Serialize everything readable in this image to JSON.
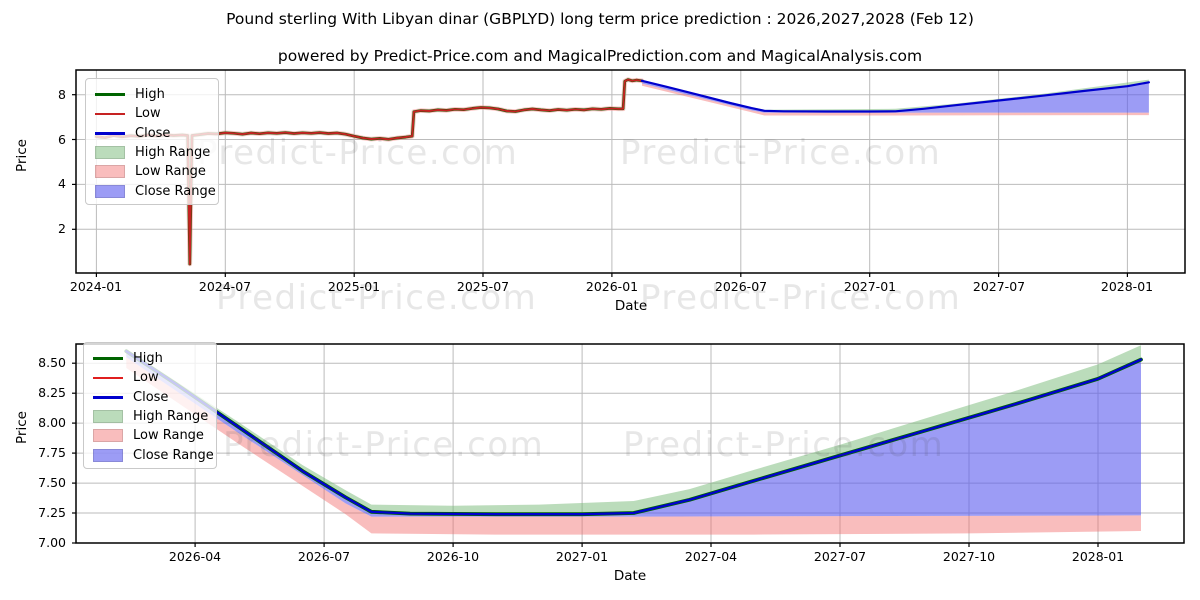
{
  "header": {
    "title": "Pound sterling With Libyan dinar (GBPLYD) long term price prediction : 2026,2027,2028 (Feb 12)",
    "subtitle": "powered by Predict-Price.com and MagicalPrediction.com and MagicalAnalysis.com"
  },
  "watermark": {
    "text": "Predict-Price.com"
  },
  "colors": {
    "high_line": "#006400",
    "low_line_top": "#c62222",
    "low_line_bottom": "#e01f1f",
    "close_line": "#0000cd",
    "high_range_fill": "rgba(120,185,120,0.5)",
    "low_range_fill": "rgba(242,108,108,0.45)",
    "close_range_fill": "rgba(90,90,238,0.6)",
    "grid": "#bbbbbb",
    "spine": "#000000"
  },
  "chart_data": [
    {
      "type": "line",
      "title": "",
      "xlabel": "Date",
      "ylabel": "Price",
      "x_unit": "months since 2024-01",
      "xlim": [
        -0.95,
        50.68
      ],
      "ylim": [
        0.05,
        9.1
      ],
      "grid": true,
      "legend_position": "upper left",
      "xticks": [
        {
          "v": 0,
          "label": "2024-01"
        },
        {
          "v": 6,
          "label": "2024-07"
        },
        {
          "v": 12,
          "label": "2025-01"
        },
        {
          "v": 18,
          "label": "2025-07"
        },
        {
          "v": 24,
          "label": "2026-01"
        },
        {
          "v": 30,
          "label": "2026-07"
        },
        {
          "v": 36,
          "label": "2027-01"
        },
        {
          "v": 42,
          "label": "2027-07"
        },
        {
          "v": 48,
          "label": "2028-01"
        }
      ],
      "yticks": [
        {
          "v": 2,
          "label": "2"
        },
        {
          "v": 4,
          "label": "4"
        },
        {
          "v": 6,
          "label": "6"
        },
        {
          "v": 8,
          "label": "8"
        }
      ],
      "legend": [
        {
          "label": "High",
          "swatch": "line",
          "color": "#006400"
        },
        {
          "label": "Low",
          "swatch": "line",
          "color": "#c62222"
        },
        {
          "label": "Close",
          "swatch": "line",
          "color": "#0000cd"
        },
        {
          "label": "High Range",
          "swatch": "patch",
          "color": "rgba(120,185,120,0.5)"
        },
        {
          "label": "Low Range",
          "swatch": "patch",
          "color": "rgba(242,108,108,0.45)"
        },
        {
          "label": "Close Range",
          "swatch": "patch",
          "color": "rgba(90,90,238,0.6)"
        }
      ],
      "series": {
        "historical_low": [
          [
            0,
            6.13
          ],
          [
            0.4,
            6.08
          ],
          [
            0.8,
            6.18
          ],
          [
            1.2,
            6.12
          ],
          [
            1.6,
            6.17
          ],
          [
            2,
            6.14
          ],
          [
            2.4,
            6.2
          ],
          [
            2.8,
            6.16
          ],
          [
            3.2,
            6.21
          ],
          [
            3.6,
            6.18
          ],
          [
            4,
            6.2
          ],
          [
            4.25,
            6.18
          ],
          [
            4.35,
            0.45
          ],
          [
            4.45,
            6.18
          ],
          [
            4.8,
            6.22
          ],
          [
            5.2,
            6.27
          ],
          [
            5.6,
            6.25
          ],
          [
            6,
            6.3
          ],
          [
            6.4,
            6.28
          ],
          [
            6.8,
            6.24
          ],
          [
            7.2,
            6.29
          ],
          [
            7.6,
            6.26
          ],
          [
            8,
            6.3
          ],
          [
            8.4,
            6.28
          ],
          [
            8.8,
            6.31
          ],
          [
            9.2,
            6.27
          ],
          [
            9.6,
            6.3
          ],
          [
            10,
            6.28
          ],
          [
            10.4,
            6.31
          ],
          [
            10.8,
            6.27
          ],
          [
            11.2,
            6.29
          ],
          [
            11.6,
            6.24
          ],
          [
            12,
            6.15
          ],
          [
            12.4,
            6.07
          ],
          [
            12.8,
            6.02
          ],
          [
            13.2,
            6.05
          ],
          [
            13.6,
            6.01
          ],
          [
            14,
            6.07
          ],
          [
            14.4,
            6.11
          ],
          [
            14.7,
            6.15
          ],
          [
            14.78,
            7.24
          ],
          [
            15.1,
            7.29
          ],
          [
            15.5,
            7.27
          ],
          [
            15.9,
            7.32
          ],
          [
            16.3,
            7.3
          ],
          [
            16.7,
            7.35
          ],
          [
            17.1,
            7.33
          ],
          [
            17.5,
            7.39
          ],
          [
            17.9,
            7.43
          ],
          [
            18.3,
            7.41
          ],
          [
            18.7,
            7.36
          ],
          [
            19.1,
            7.27
          ],
          [
            19.5,
            7.25
          ],
          [
            19.9,
            7.32
          ],
          [
            20.3,
            7.36
          ],
          [
            20.7,
            7.32
          ],
          [
            21.1,
            7.29
          ],
          [
            21.5,
            7.34
          ],
          [
            21.9,
            7.31
          ],
          [
            22.3,
            7.35
          ],
          [
            22.7,
            7.32
          ],
          [
            23.1,
            7.37
          ],
          [
            23.5,
            7.35
          ],
          [
            23.9,
            7.39
          ],
          [
            24.3,
            7.37
          ],
          [
            24.52,
            7.37
          ],
          [
            24.6,
            8.6
          ],
          [
            24.75,
            8.67
          ],
          [
            24.95,
            8.62
          ],
          [
            25.15,
            8.65
          ],
          [
            25.4,
            8.62
          ]
        ],
        "close_prediction": [
          [
            25.4,
            8.62
          ],
          [
            26.5,
            8.36
          ],
          [
            28,
            8.0
          ],
          [
            29.5,
            7.63
          ],
          [
            30.5,
            7.4
          ],
          [
            31.1,
            7.28
          ],
          [
            32,
            7.26
          ],
          [
            34,
            7.25
          ],
          [
            36,
            7.25
          ],
          [
            37.2,
            7.26
          ],
          [
            38.5,
            7.37
          ],
          [
            40,
            7.53
          ],
          [
            42,
            7.74
          ],
          [
            44,
            7.95
          ],
          [
            46,
            8.17
          ],
          [
            48,
            8.38
          ],
          [
            49,
            8.55
          ]
        ],
        "high_range_upper": [
          [
            25.4,
            8.65
          ],
          [
            30.5,
            7.44
          ],
          [
            31.1,
            7.33
          ],
          [
            37.2,
            7.37
          ],
          [
            40,
            7.6
          ],
          [
            44,
            8.03
          ],
          [
            49,
            8.67
          ]
        ],
        "close_range_lower": [
          [
            25.4,
            8.5
          ],
          [
            30.5,
            7.3
          ],
          [
            31.1,
            7.2
          ],
          [
            37.2,
            7.2
          ],
          [
            49,
            7.2
          ]
        ],
        "low_range_lower": [
          [
            25.4,
            8.4
          ],
          [
            30.5,
            7.22
          ],
          [
            31.1,
            7.07
          ],
          [
            37.2,
            7.07
          ],
          [
            49,
            7.09
          ]
        ]
      },
      "render": [
        {
          "kind": "band",
          "upper": "high_range_upper",
          "lower": "close_prediction",
          "color": "rgba(120,185,120,0.5)"
        },
        {
          "kind": "band",
          "upper": "close_range_lower",
          "lower": "low_range_lower",
          "color": "rgba(242,108,108,0.45)"
        },
        {
          "kind": "band",
          "upper": "close_prediction",
          "lower": "close_range_lower",
          "color": "rgba(90,90,238,0.6)"
        },
        {
          "kind": "line",
          "series": "historical_low",
          "color": "rgba(250,140,140,0.5)",
          "width": 4.6
        },
        {
          "kind": "line",
          "series": "historical_low",
          "color": "#006400",
          "width": 2.7
        },
        {
          "kind": "line",
          "series": "historical_low",
          "color": "#c62222",
          "width": 1.9
        },
        {
          "kind": "line",
          "series": "close_prediction",
          "color": "#0000cd",
          "width": 2.2
        }
      ]
    },
    {
      "type": "line",
      "title": "",
      "xlabel": "Date",
      "ylabel": "Price",
      "x_unit": "months since 2024-01",
      "xlim": [
        24.23,
        50.0
      ],
      "ylim": [
        7.0,
        8.66
      ],
      "grid": true,
      "legend_position": "upper left",
      "xticks": [
        {
          "v": 27,
          "label": "2026-04"
        },
        {
          "v": 30,
          "label": "2026-07"
        },
        {
          "v": 33,
          "label": "2026-10"
        },
        {
          "v": 36,
          "label": "2027-01"
        },
        {
          "v": 39,
          "label": "2027-04"
        },
        {
          "v": 42,
          "label": "2027-07"
        },
        {
          "v": 45,
          "label": "2027-10"
        },
        {
          "v": 48,
          "label": "2028-01"
        }
      ],
      "yticks": [
        {
          "v": 7.0,
          "label": "7.00"
        },
        {
          "v": 7.25,
          "label": "7.25"
        },
        {
          "v": 7.5,
          "label": "7.50"
        },
        {
          "v": 7.75,
          "label": "7.75"
        },
        {
          "v": 8.0,
          "label": "8.00"
        },
        {
          "v": 8.25,
          "label": "8.25"
        },
        {
          "v": 8.5,
          "label": "8.50"
        }
      ],
      "legend": [
        {
          "label": "High",
          "swatch": "line",
          "color": "#006400"
        },
        {
          "label": "Low",
          "swatch": "line",
          "color": "#e01f1f"
        },
        {
          "label": "Close",
          "swatch": "line",
          "color": "#0000cd"
        },
        {
          "label": "High Range",
          "swatch": "patch",
          "color": "rgba(120,185,120,0.5)"
        },
        {
          "label": "Low Range",
          "swatch": "patch",
          "color": "rgba(242,108,108,0.45)"
        },
        {
          "label": "Close Range",
          "swatch": "patch",
          "color": "rgba(90,90,238,0.6)"
        }
      ],
      "series": {
        "close_prediction": [
          [
            25.4,
            8.6
          ],
          [
            26.5,
            8.34
          ],
          [
            28,
            7.97
          ],
          [
            29.5,
            7.6
          ],
          [
            30.5,
            7.38
          ],
          [
            31.1,
            7.26
          ],
          [
            32,
            7.245
          ],
          [
            34,
            7.24
          ],
          [
            36,
            7.24
          ],
          [
            37.2,
            7.25
          ],
          [
            38.5,
            7.36
          ],
          [
            40,
            7.52
          ],
          [
            42,
            7.73
          ],
          [
            44,
            7.94
          ],
          [
            46,
            8.15
          ],
          [
            48,
            8.37
          ],
          [
            49,
            8.53
          ]
        ],
        "high_range_upper": [
          [
            25.4,
            8.62
          ],
          [
            28,
            8.01
          ],
          [
            29.5,
            7.65
          ],
          [
            30.5,
            7.44
          ],
          [
            31.1,
            7.32
          ],
          [
            33,
            7.31
          ],
          [
            35,
            7.32
          ],
          [
            37.2,
            7.35
          ],
          [
            38.5,
            7.45
          ],
          [
            40,
            7.61
          ],
          [
            42,
            7.82
          ],
          [
            44,
            8.04
          ],
          [
            46,
            8.26
          ],
          [
            48,
            8.49
          ],
          [
            49,
            8.65
          ]
        ],
        "close_range_lower": [
          [
            25.4,
            8.55
          ],
          [
            28,
            7.92
          ],
          [
            30.5,
            7.33
          ],
          [
            31.1,
            7.22
          ],
          [
            37.2,
            7.22
          ],
          [
            49,
            7.23
          ]
        ],
        "low_range_lower": [
          [
            25.4,
            8.46
          ],
          [
            28,
            7.83
          ],
          [
            30.5,
            7.24
          ],
          [
            31.1,
            7.08
          ],
          [
            34,
            7.07
          ],
          [
            40,
            7.07
          ],
          [
            45,
            7.08
          ],
          [
            49,
            7.1
          ]
        ]
      },
      "render": [
        {
          "kind": "band",
          "upper": "high_range_upper",
          "lower": "close_prediction",
          "color": "rgba(120,185,120,0.5)"
        },
        {
          "kind": "band",
          "upper": "close_range_lower",
          "lower": "low_range_lower",
          "color": "rgba(242,108,108,0.45)"
        },
        {
          "kind": "band",
          "upper": "close_prediction",
          "lower": "close_range_lower",
          "color": "rgba(90,90,238,0.6)"
        },
        {
          "kind": "line",
          "series": "close_prediction",
          "color": "#006400",
          "width": 3.8
        },
        {
          "kind": "line",
          "series": "close_prediction",
          "color": "#0000cd",
          "width": 2.3
        }
      ]
    }
  ]
}
